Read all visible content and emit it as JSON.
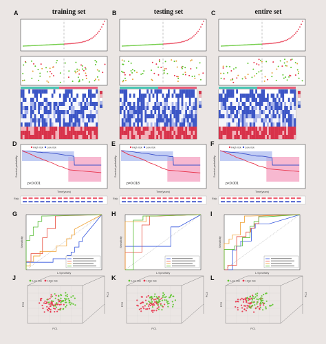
{
  "figure": {
    "panel_letters": [
      "A",
      "B",
      "C",
      "D",
      "E",
      "F",
      "G",
      "H",
      "I",
      "J",
      "K",
      "L"
    ],
    "column_titles": [
      "training set",
      "testing set",
      "entire set"
    ],
    "pvalues": [
      "p<0.001",
      "p=0.018",
      "p<0.001"
    ],
    "km_xlabel": "Time(years)",
    "km_ylabel": "Survival probability",
    "km_legend": [
      "High risk",
      "Low risk"
    ],
    "risk_table_label": "Risk",
    "roc_xlabel": "1-Specificity",
    "roc_ylabel": "Sensitivity",
    "pca_legend": [
      "Low risk",
      "High risk"
    ],
    "pca_axes": [
      "PC1",
      "PC2",
      "PC3"
    ]
  },
  "colors": {
    "high": "#e8334a",
    "low": "#3a4fc9",
    "green": "#5cc52b",
    "roc_blue": "#3355dd",
    "roc_red": "#e84a3a",
    "roc_orange": "#f0a030",
    "roc_green": "#55bb33",
    "heat_red": "#d8324a",
    "heat_blue": "#3c56c6",
    "band_high": "#f4a0c0",
    "band_low": "#a8b8ef"
  },
  "chart_data": [
    {
      "type": "line",
      "title": "training set",
      "series": [
        {
          "name": "High risk"
        },
        {
          "name": "Low risk"
        }
      ]
    },
    {
      "type": "line",
      "title": "testing set",
      "series": [
        {
          "name": "High risk"
        },
        {
          "name": "Low risk"
        }
      ]
    },
    {
      "type": "line",
      "title": "entire set",
      "series": [
        {
          "name": "High risk"
        },
        {
          "name": "Low risk"
        }
      ]
    }
  ]
}
